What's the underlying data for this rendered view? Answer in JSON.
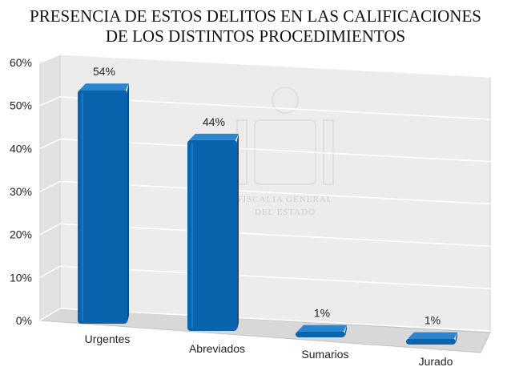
{
  "title_line1": "PRESENCIA DE ESTOS DELITOS EN LAS CALIFICACIONES",
  "title_line2": "DE LOS DISTINTOS PROCEDIMIENTOS",
  "watermark": {
    "line1": "FISCALIA GENERAL",
    "line2": "DEL ESTADO"
  },
  "colors": {
    "bar": "#0a64ad",
    "bar_top": "#2b86cf",
    "bar_side": "#084f8a",
    "wall": "#ececec",
    "floor": "#d8d8d8",
    "grid": "#ffffff"
  },
  "chart_data": {
    "type": "bar",
    "title": "PRESENCIA DE ESTOS DELITOS EN LAS CALIFICACIONES DE LOS DISTINTOS PROCEDIMIENTOS",
    "categories": [
      "Urgentes",
      "Abreviados",
      "Sumarios",
      "Jurado"
    ],
    "values": [
      54,
      44,
      1,
      1
    ],
    "value_labels": [
      "54%",
      "44%",
      "1%",
      "1%"
    ],
    "ylim": [
      0,
      60
    ],
    "yticks": [
      "0%",
      "10%",
      "20%",
      "30%",
      "40%",
      "50%",
      "60%"
    ],
    "grid": true,
    "legend": "none",
    "style": "3d"
  }
}
